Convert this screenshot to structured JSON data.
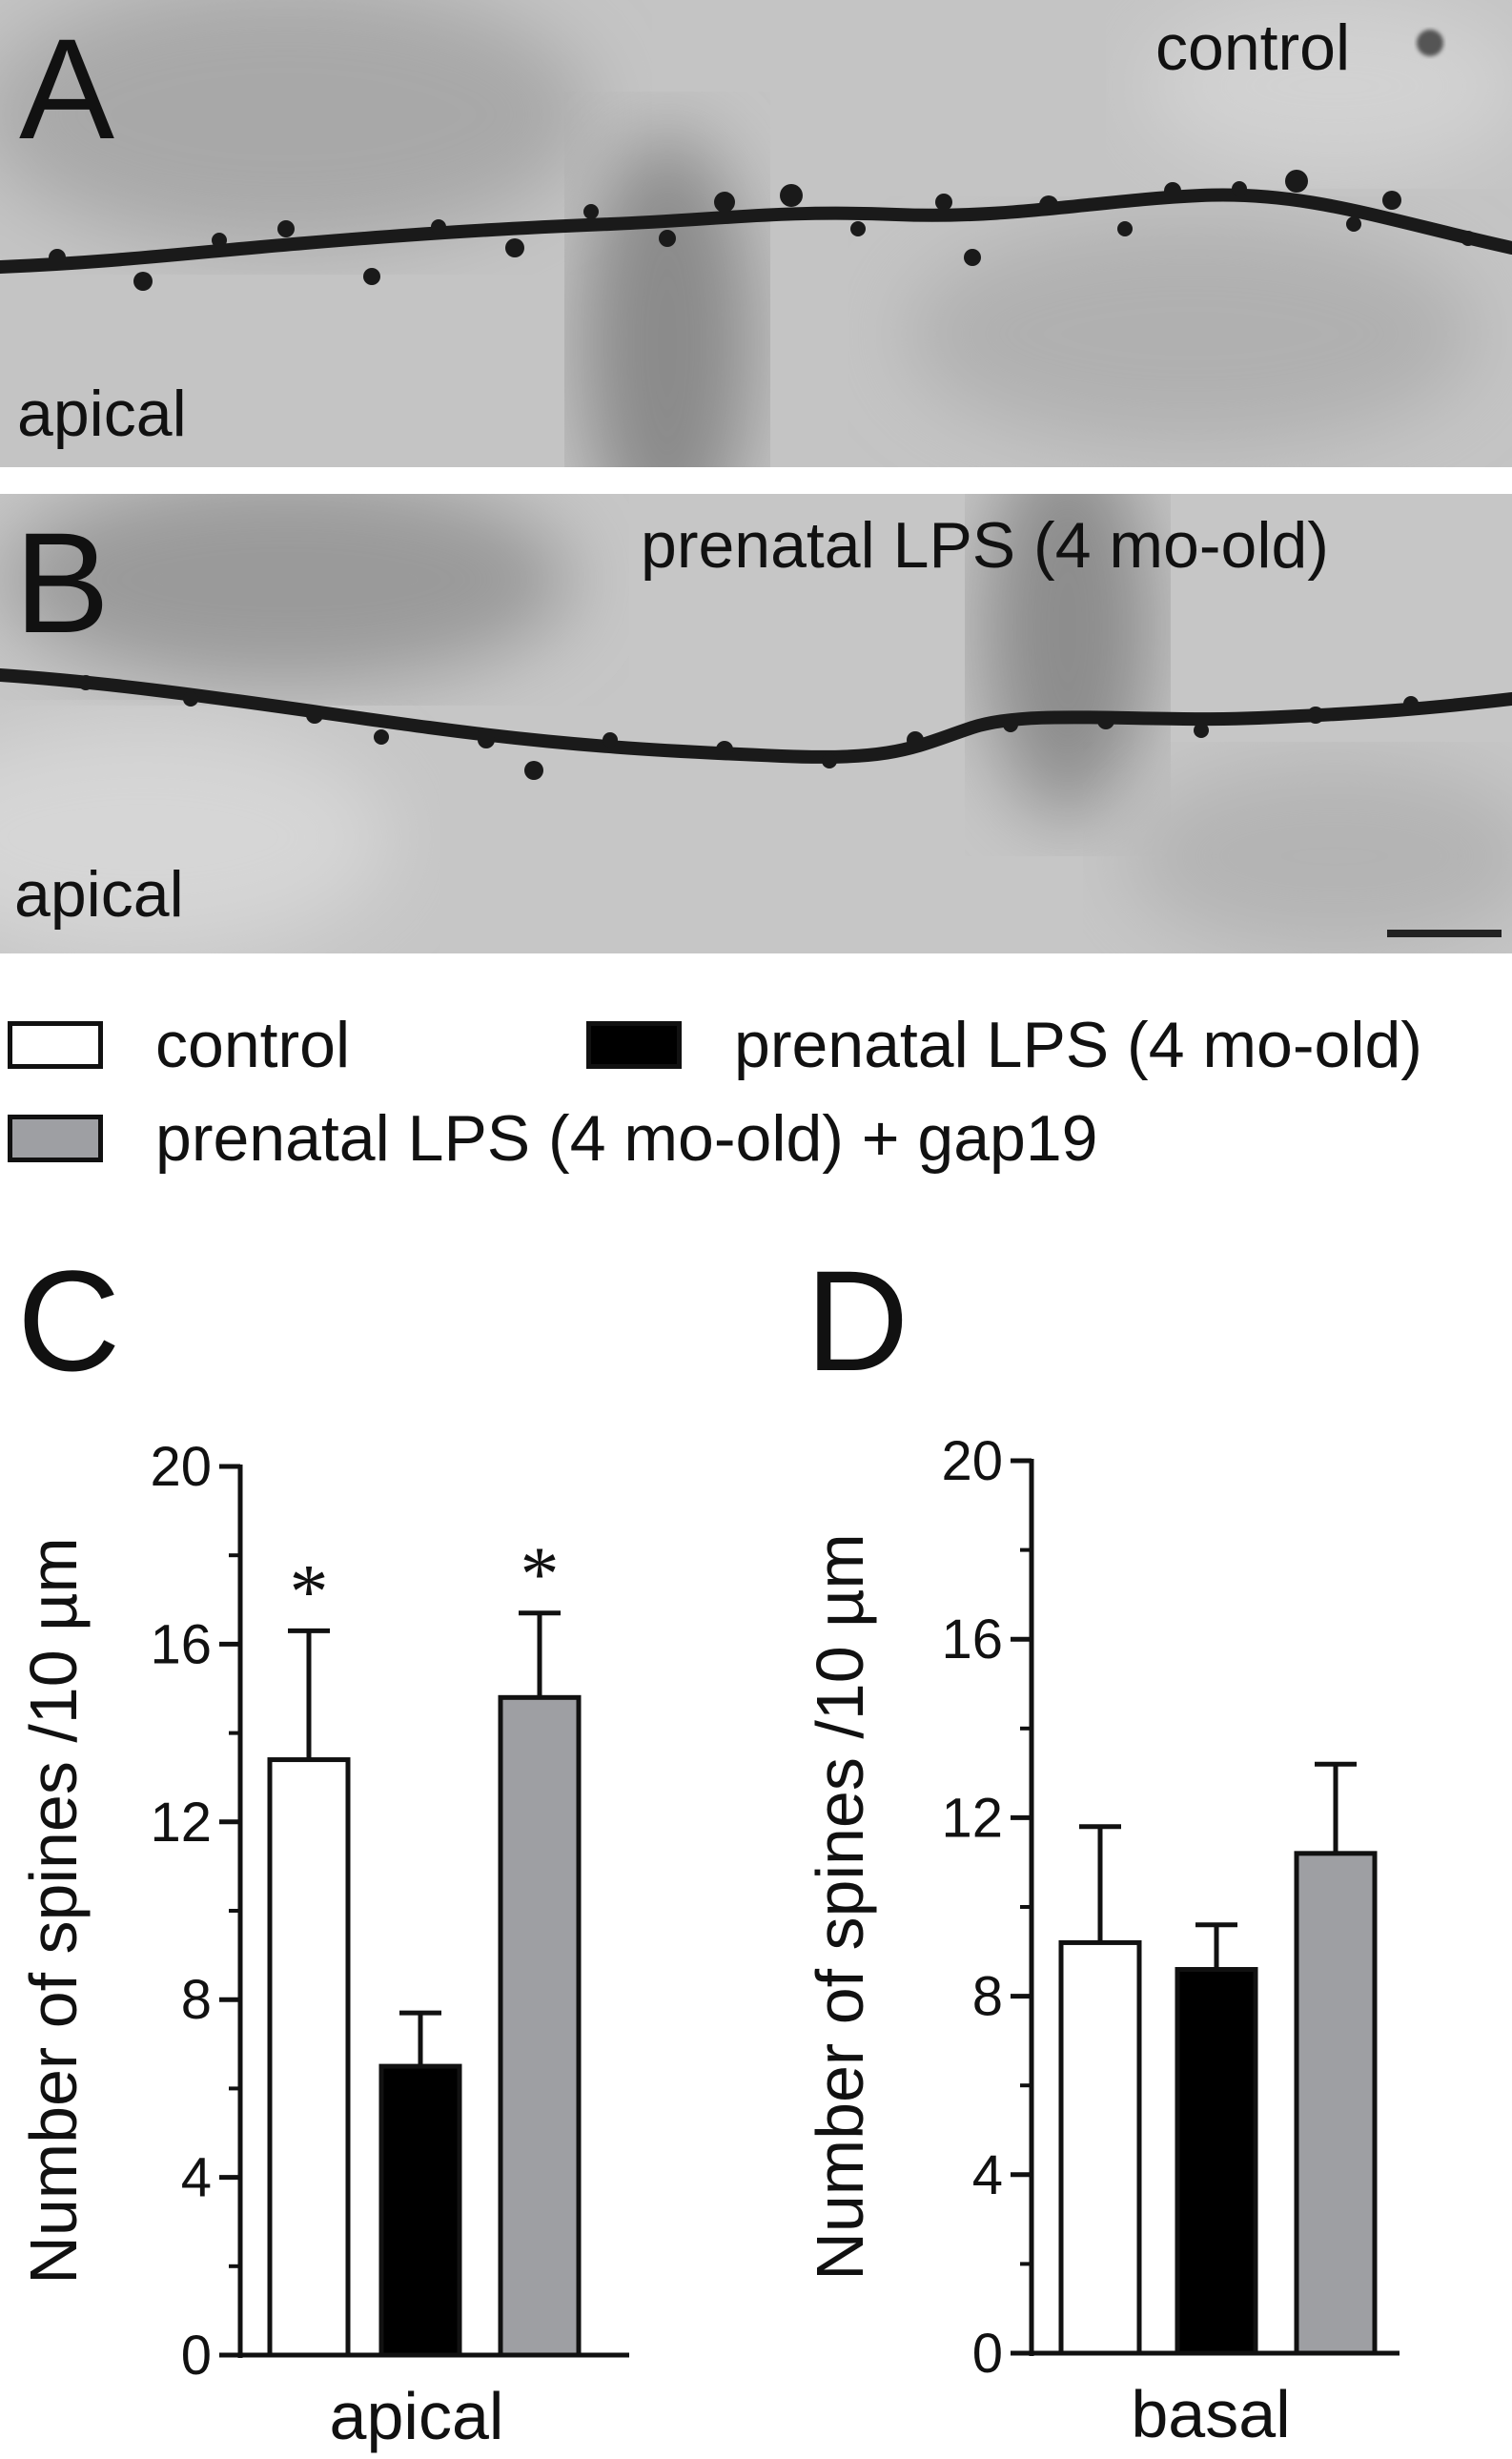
{
  "panels": {
    "A": {
      "letter": "A",
      "condition": "control",
      "region": "apical"
    },
    "B": {
      "letter": "B",
      "condition": "prenatal LPS (4 mo-old)",
      "region": "apical"
    }
  },
  "legend": [
    {
      "label": "control",
      "color": "#ffffff"
    },
    {
      "label": "prenatal LPS (4 mo-old)",
      "color": "#000000"
    },
    {
      "label": "prenatal LPS (4 mo-old) + gap19",
      "color": "#9e9fa3"
    }
  ],
  "chart_data": [
    {
      "panel": "C",
      "type": "bar",
      "categories": [
        "control",
        "prenatal LPS (4 mo-old)",
        "prenatal LPS (4 mo-old) + gap19"
      ],
      "values": [
        13.4,
        6.5,
        14.8
      ],
      "errors": [
        2.9,
        1.2,
        1.9
      ],
      "significance": [
        "*",
        "",
        "*"
      ],
      "colors": [
        "#ffffff",
        "#000000",
        "#9e9fa3"
      ],
      "xlabel": "apical",
      "ylabel": "Number of spines /10 µm",
      "ylim": [
        0,
        20
      ],
      "yticks": [
        0,
        4,
        8,
        12,
        16,
        20
      ]
    },
    {
      "panel": "D",
      "type": "bar",
      "categories": [
        "control",
        "prenatal LPS (4 mo-old)",
        "prenatal LPS (4 mo-old) + gap19"
      ],
      "values": [
        9.2,
        8.6,
        11.2
      ],
      "errors": [
        2.6,
        1.0,
        2.0
      ],
      "significance": [
        "",
        "",
        ""
      ],
      "colors": [
        "#ffffff",
        "#000000",
        "#9e9fa3"
      ],
      "xlabel": "basal",
      "ylabel": "Number of spines /10 µm",
      "ylim": [
        0,
        20
      ],
      "yticks": [
        0,
        4,
        8,
        12,
        16,
        20
      ]
    }
  ]
}
